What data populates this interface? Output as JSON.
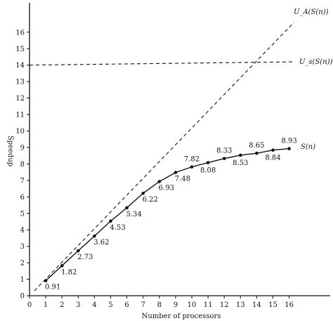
{
  "chart_data": {
    "type": "line",
    "title": "",
    "xlabel": "Number of processors",
    "ylabel": "Speedup",
    "xlim": [
      0,
      17
    ],
    "ylim": [
      0,
      18
    ],
    "x_ticks": [
      "0",
      "1",
      "2",
      "3",
      "4",
      "5",
      "6",
      "7",
      "8",
      "9",
      "10",
      "11",
      "12",
      "13",
      "14",
      "15",
      "16"
    ],
    "y_ticks": [
      "0",
      "1",
      "2",
      "3",
      "4",
      "5",
      "6",
      "7",
      "8",
      "9",
      "10",
      "11",
      "12",
      "13",
      "14",
      "15",
      "16"
    ],
    "grid": false,
    "series": [
      {
        "name": "S(n)",
        "style": "solid-with-markers",
        "x": [
          1,
          2,
          3,
          4,
          5,
          6,
          7,
          8,
          9,
          10,
          11,
          12,
          13,
          14,
          15,
          16
        ],
        "y": [
          0.91,
          1.82,
          2.73,
          3.62,
          4.53,
          5.34,
          6.22,
          6.93,
          7.48,
          7.82,
          8.08,
          8.33,
          8.53,
          8.65,
          8.84,
          8.93
        ],
        "labels": [
          "0.91",
          "1.82",
          "2.73",
          "3.62",
          "4.53",
          "5.34",
          "6.22",
          "6.93",
          "7.48",
          "7.82",
          "8.08",
          "8.33",
          "8.53",
          "8.65",
          "8.84",
          "8.93"
        ]
      },
      {
        "name": "U_A(S(n))",
        "style": "dashed",
        "x": [
          0.3,
          16.3
        ],
        "y": [
          0.3,
          16.6
        ]
      },
      {
        "name": "U_s(S(n))",
        "style": "dashed",
        "x": [
          0,
          16.3
        ],
        "y": [
          14.0,
          14.2
        ]
      }
    ],
    "colors": {
      "line": "#111111",
      "background": "#ffffff"
    }
  }
}
